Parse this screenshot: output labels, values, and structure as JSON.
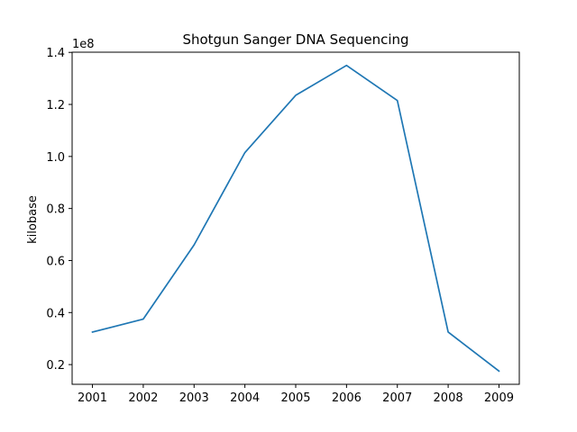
{
  "chart_data": {
    "type": "line",
    "title": "Shotgun Sanger DNA Sequencing",
    "xlabel": "",
    "ylabel": "kilobase",
    "y_offset_label": "1e8",
    "x": [
      2001,
      2002,
      2003,
      2004,
      2005,
      2006,
      2007,
      2008,
      2009
    ],
    "series": [
      {
        "values": [
          32500000,
          37500000,
          66000000,
          101500000,
          123500000,
          135000000,
          121500000,
          32500000,
          17500000
        ],
        "color": "#1f77b4"
      }
    ],
    "xticks": [
      "2001",
      "2002",
      "2003",
      "2004",
      "2005",
      "2006",
      "2007",
      "2008",
      "2009"
    ],
    "yticks": [
      {
        "value": 20000000,
        "label": "0.2"
      },
      {
        "value": 40000000,
        "label": "0.4"
      },
      {
        "value": 60000000,
        "label": "0.6"
      },
      {
        "value": 80000000,
        "label": "0.8"
      },
      {
        "value": 100000000,
        "label": "1.0"
      },
      {
        "value": 120000000,
        "label": "1.2"
      },
      {
        "value": 140000000,
        "label": "1.4"
      }
    ],
    "xlim": [
      2000.6,
      2009.4
    ],
    "ylim": [
      12425000,
      140075000
    ],
    "grid": false
  }
}
